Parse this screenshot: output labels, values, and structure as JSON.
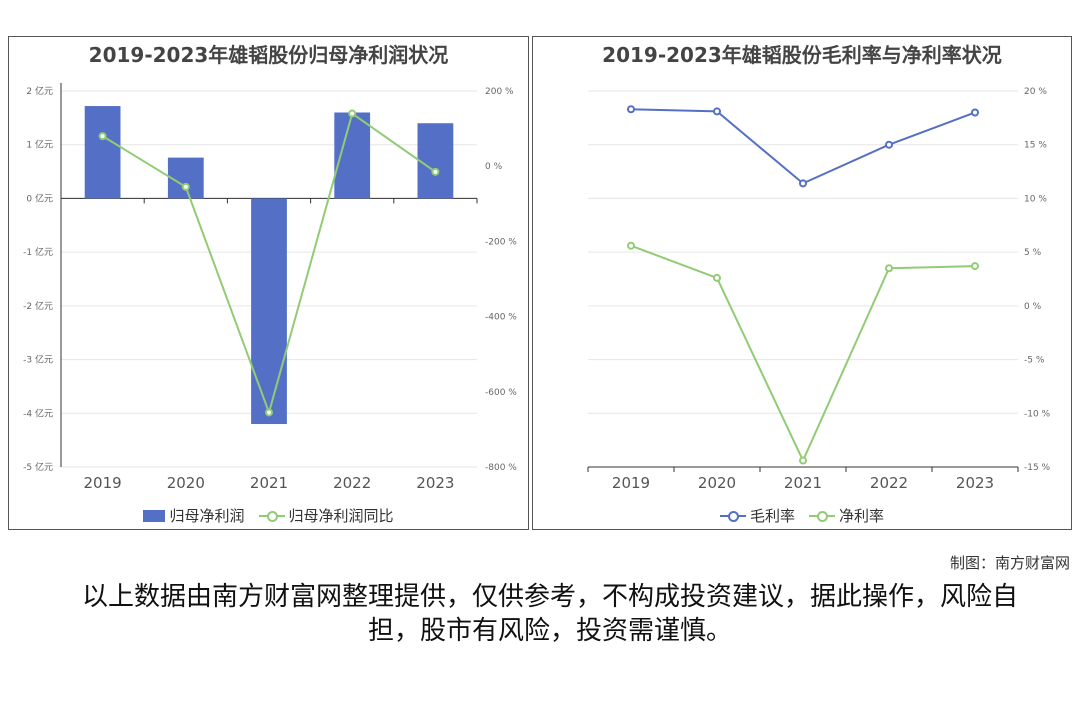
{
  "colors": {
    "bar": "#5470c6",
    "line_green": "#91cc75",
    "line_blue": "#5470c6"
  },
  "left_chart": {
    "title": "2019-2023年雄韬股份归母净利润状况",
    "legend": [
      "归母净利润",
      "归母净利润同比"
    ]
  },
  "right_chart": {
    "title": "2019-2023年雄韬股份毛利率与净利率状况",
    "legend": [
      "毛利率",
      "净利率"
    ]
  },
  "chart_data": [
    {
      "type": "bar",
      "title": "2019-2023年雄韬股份归母净利润状况",
      "categories": [
        "2019",
        "2020",
        "2021",
        "2022",
        "2023"
      ],
      "y_ticks": [
        "2 亿元",
        "1 亿元",
        "0 亿元",
        "-1 亿元",
        "-2 亿元",
        "-3 亿元",
        "-4 亿元",
        "-5 亿元"
      ],
      "y2_ticks": [
        "200 %",
        "0 %",
        "-200 %",
        "-400 %",
        "-600 %",
        "-800 %"
      ],
      "ylim": [
        -5,
        2
      ],
      "y2lim": [
        -800,
        200
      ],
      "series": [
        {
          "name": "归母净利润",
          "type": "bar",
          "axis": "left",
          "values": [
            1.72,
            0.76,
            -4.2,
            1.6,
            1.4
          ]
        },
        {
          "name": "归母净利润同比",
          "type": "line",
          "axis": "right",
          "values": [
            80,
            -55,
            -655,
            140,
            -15
          ]
        }
      ],
      "legend_position": "bottom",
      "grid": true
    },
    {
      "type": "line",
      "title": "2019-2023年雄韬股份毛利率与净利率状况",
      "categories": [
        "2019",
        "2020",
        "2021",
        "2022",
        "2023"
      ],
      "y_ticks": [
        "20 %",
        "15 %",
        "10 %",
        "5 %",
        "0 %",
        "-5 %",
        "-10 %",
        "-15 %"
      ],
      "ylim": [
        -15,
        20
      ],
      "series": [
        {
          "name": "毛利率",
          "values": [
            18.3,
            18.1,
            11.4,
            15.0,
            18.0
          ]
        },
        {
          "name": "净利率",
          "values": [
            5.6,
            2.6,
            -14.4,
            3.5,
            3.7
          ]
        }
      ],
      "legend_position": "bottom",
      "grid": true
    }
  ],
  "footer": {
    "credit": "制图：南方财富网",
    "disclaimer": "以上数据由南方财富网整理提供，仅供参考，不构成投资建议，据此操作，风险自担，股市有风险，投资需谨慎。"
  }
}
